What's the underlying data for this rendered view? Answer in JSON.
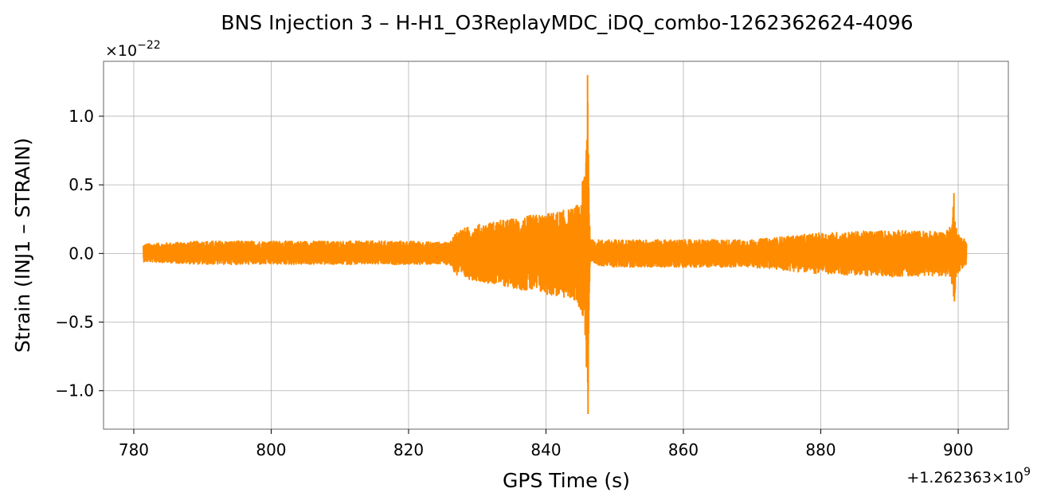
{
  "chart_data": {
    "type": "line",
    "title": "BNS Injection 3 – H-H1_O3ReplayMDC_iDQ_combo-1262362624-4096",
    "xlabel": "GPS Time (s)",
    "ylabel": "Strain (INJ1 – STRAIN)",
    "x_offset_label": "+1.262363×10",
    "x_offset_exponent": "9",
    "y_scale_label": "×10",
    "y_scale_exponent": "−22",
    "xlim": [
      775.6,
      907.3
    ],
    "ylim": [
      -1.28,
      1.4
    ],
    "x_ticks": [
      780,
      800,
      820,
      840,
      860,
      880,
      900
    ],
    "x_tick_labels": [
      "780",
      "800",
      "820",
      "840",
      "860",
      "880",
      "900"
    ],
    "y_ticks": [
      1.0,
      0.5,
      0.0,
      -0.5,
      -1.0
    ],
    "y_tick_labels": [
      "1.0",
      "0.5",
      "0.0",
      "−0.5",
      "−1.0"
    ],
    "grid": true,
    "line_color": "#ff8c00",
    "series": [
      {
        "values_envelope_upper": [
          [
            781.4,
            0.07
          ],
          [
            790,
            0.09
          ],
          [
            800,
            0.09
          ],
          [
            810,
            0.09
          ],
          [
            820,
            0.09
          ],
          [
            826,
            0.08
          ],
          [
            827,
            0.17
          ],
          [
            830,
            0.21
          ],
          [
            833,
            0.24
          ],
          [
            836,
            0.26
          ],
          [
            838,
            0.28
          ],
          [
            840,
            0.29
          ],
          [
            842,
            0.31
          ],
          [
            844,
            0.33
          ],
          [
            845,
            0.38
          ],
          [
            845.7,
            0.7
          ],
          [
            846.1,
            1.3
          ],
          [
            846.4,
            0.1
          ],
          [
            850,
            0.1
          ],
          [
            860,
            0.1
          ],
          [
            870,
            0.1
          ],
          [
            880,
            0.15
          ],
          [
            890,
            0.17
          ],
          [
            898,
            0.16
          ],
          [
            899,
            0.2
          ],
          [
            899.4,
            0.44
          ],
          [
            899.8,
            0.15
          ],
          [
            901.2,
            0.1
          ]
        ],
        "values_envelope_lower": [
          [
            781.4,
            -0.06
          ],
          [
            790,
            -0.08
          ],
          [
            800,
            -0.08
          ],
          [
            810,
            -0.08
          ],
          [
            820,
            -0.08
          ],
          [
            826,
            -0.08
          ],
          [
            827,
            -0.17
          ],
          [
            830,
            -0.2
          ],
          [
            833,
            -0.23
          ],
          [
            836,
            -0.26
          ],
          [
            838,
            -0.28
          ],
          [
            840,
            -0.3
          ],
          [
            842,
            -0.32
          ],
          [
            844,
            -0.34
          ],
          [
            845,
            -0.4
          ],
          [
            845.7,
            -0.6
          ],
          [
            846.1,
            -1.17
          ],
          [
            846.4,
            -0.08
          ],
          [
            850,
            -0.1
          ],
          [
            860,
            -0.1
          ],
          [
            870,
            -0.1
          ],
          [
            880,
            -0.15
          ],
          [
            890,
            -0.17
          ],
          [
            898,
            -0.16
          ],
          [
            899,
            -0.22
          ],
          [
            899.4,
            -0.35
          ],
          [
            899.8,
            -0.15
          ],
          [
            901.2,
            -0.08
          ]
        ]
      }
    ]
  }
}
